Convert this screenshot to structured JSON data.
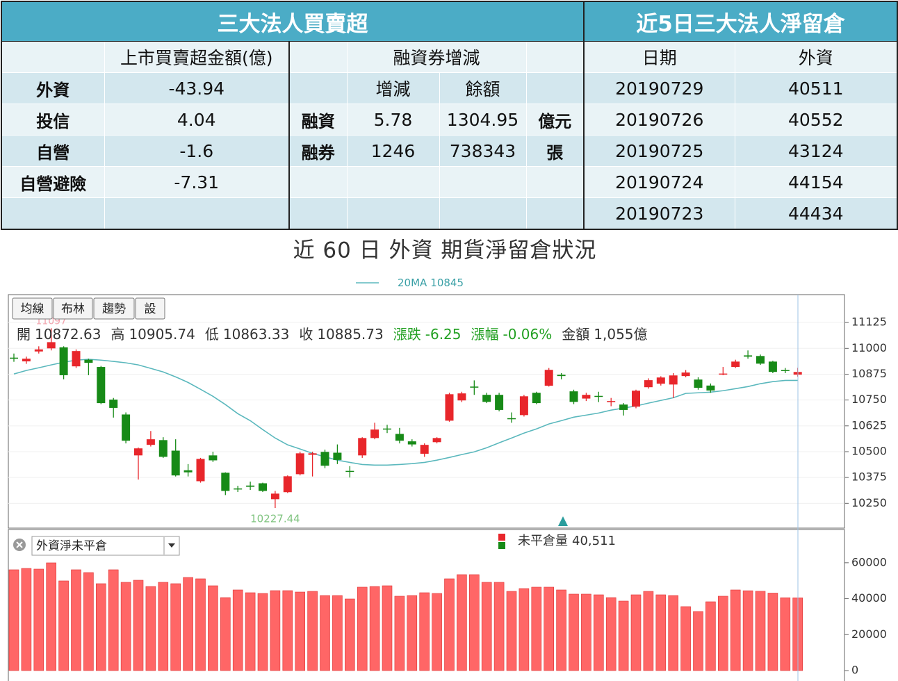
{
  "institutional": {
    "title": "三大法人買賣超",
    "amount_header": "上市買賣超金額(億)",
    "rows": [
      {
        "name": "外資",
        "amount": -43.94
      },
      {
        "name": "投信",
        "amount": 4.04
      },
      {
        "name": "自營",
        "amount": -1.6
      },
      {
        "name": "自營避險",
        "amount": -7.31
      }
    ]
  },
  "margin": {
    "header": "融資券增減",
    "col_change": "增減",
    "col_balance": "餘額",
    "rows": [
      {
        "name": "融資",
        "change": 5.78,
        "balance": 1304.95,
        "unit": "億元"
      },
      {
        "name": "融券",
        "change": 1246,
        "balance": 738343,
        "unit": "張"
      }
    ]
  },
  "net_position": {
    "title": "近5日三大法人淨留倉",
    "col_date": "日期",
    "col_foreign": "外資",
    "rows": [
      {
        "date": "20190729",
        "foreign": 40511
      },
      {
        "date": "20190726",
        "foreign": 40552
      },
      {
        "date": "20190725",
        "foreign": 43124
      },
      {
        "date": "20190724",
        "foreign": 44154
      },
      {
        "date": "20190723",
        "foreign": 44434
      }
    ]
  },
  "chart_title": "近 60 日 外資 期貨淨留倉狀況",
  "toolbar": [
    "均線",
    "布林",
    "趨勢",
    "設"
  ],
  "quote": [
    {
      "label": "開",
      "value": "10872.63"
    },
    {
      "label": "高",
      "value": "10905.74"
    },
    {
      "label": "低",
      "value": "10863.33"
    },
    {
      "label": "收",
      "value": "10885.73"
    },
    {
      "label": "漲跌",
      "value": "-6.25",
      "color": "#22a022"
    },
    {
      "label": "漲幅",
      "value": "-0.06%",
      "color": "#22a022"
    },
    {
      "label": "金額",
      "value": "1,055億"
    }
  ],
  "chart_data": [
    {
      "type": "candlestick",
      "up_color": "#e8262b",
      "down_color": "#178a17",
      "grid": true,
      "ylim": [
        10130,
        11260
      ],
      "yticks": [
        10250,
        10375,
        10500,
        10625,
        10750,
        10875,
        11000,
        11125
      ],
      "open": [
        10955,
        10937,
        10985,
        11000,
        11005,
        10913,
        10945,
        10910,
        10752,
        10680,
        10482,
        10533,
        10556,
        10505,
        10410,
        10357,
        10482,
        10398,
        10322,
        10336,
        10347,
        10270,
        10304,
        10391,
        10485,
        10499,
        10495,
        10407,
        10482,
        10566,
        10612,
        10586,
        10550,
        10490,
        10546,
        10650,
        10748,
        10815,
        10775,
        10775,
        10662,
        10677,
        10785,
        10819,
        10872,
        10792,
        10757,
        10770,
        10740,
        10728,
        10718,
        10812,
        10829,
        10825,
        10866,
        10849,
        10820,
        10873,
        10910,
        10966,
        10963,
        10936,
        10895,
        10872.63
      ],
      "high": [
        10975,
        10960,
        11010,
        11097,
        11010,
        10995,
        10950,
        10915,
        10760,
        10690,
        10520,
        10600,
        10570,
        10560,
        10440,
        10470,
        10500,
        10400,
        10335,
        10355,
        10350,
        10310,
        10385,
        10500,
        10500,
        10510,
        10535,
        10430,
        10570,
        10640,
        10630,
        10615,
        10560,
        10540,
        10570,
        10785,
        10790,
        10845,
        10785,
        10785,
        10690,
        10775,
        10790,
        10905,
        10880,
        10800,
        10785,
        10790,
        10760,
        10735,
        10800,
        10855,
        10865,
        10880,
        10895,
        10860,
        10830,
        10910,
        10945,
        10990,
        10970,
        10940,
        10905,
        10905.74
      ],
      "low": [
        10935,
        10925,
        10975,
        10990,
        10850,
        10905,
        10870,
        10730,
        10665,
        10540,
        10365,
        10525,
        10470,
        10380,
        10380,
        10350,
        10450,
        10290,
        10305,
        10315,
        10305,
        10227.44,
        10300,
        10385,
        10380,
        10420,
        10440,
        10375,
        10470,
        10560,
        10590,
        10540,
        10525,
        10475,
        10540,
        10645,
        10740,
        10775,
        10735,
        10695,
        10640,
        10670,
        10730,
        10815,
        10850,
        10730,
        10745,
        10740,
        10720,
        10675,
        10710,
        10805,
        10820,
        10760,
        10860,
        10800,
        10785,
        10870,
        10905,
        10950,
        10920,
        10880,
        10880,
        10863.33
      ],
      "close": [
        10950,
        10950,
        10995,
        11030,
        10870,
        10987,
        10930,
        10735,
        10712,
        10553,
        10516,
        10560,
        10475,
        10385,
        10400,
        10465,
        10458,
        10310,
        10318,
        10330,
        10310,
        10297,
        10381,
        10492,
        10492,
        10432,
        10460,
        10403,
        10566,
        10607,
        10608,
        10553,
        10535,
        10533,
        10566,
        10778,
        10782,
        10810,
        10741,
        10702,
        10658,
        10768,
        10735,
        10896,
        10866,
        10741,
        10775,
        10766,
        10745,
        10702,
        10795,
        10846,
        10859,
        10869,
        10883,
        10809,
        10796,
        10878,
        10936,
        10960,
        10926,
        10886,
        10890,
        10885.73
      ],
      "ma": {
        "name": "20MA",
        "color": "#5bb8bd",
        "values": [
          10876,
          10893,
          10906,
          10920,
          10933,
          10943,
          10947,
          10943,
          10937,
          10930,
          10920,
          10903,
          10886,
          10862,
          10835,
          10802,
          10768,
          10728,
          10684,
          10650,
          10607,
          10566,
          10533,
          10513,
          10492,
          10475,
          10459,
          10448,
          10438,
          10435,
          10435,
          10438,
          10442,
          10448,
          10459,
          10472,
          10486,
          10499,
          10519,
          10543,
          10566,
          10590,
          10610,
          10634,
          10650,
          10667,
          10677,
          10687,
          10701,
          10711,
          10721,
          10735,
          10748,
          10761,
          10782,
          10785,
          10788,
          10795,
          10805,
          10815,
          10829,
          10839,
          10845,
          10845
        ]
      }
    },
    {
      "type": "bar",
      "dropdown": "外資淨未平倉",
      "ylim": [
        0,
        78500
      ],
      "yticks": [
        0,
        20000,
        40000,
        60000
      ],
      "series": [
        {
          "name": "未平倉量",
          "color": "#ff6666",
          "last_value_label": "40,511",
          "values": [
            56090,
            56860,
            56470,
            59950,
            49900,
            56090,
            54540,
            48350,
            56090,
            49120,
            50280,
            46800,
            49120,
            48350,
            51830,
            51060,
            47190,
            40610,
            44870,
            43320,
            42930,
            44480,
            44480,
            43700,
            44090,
            41770,
            41770,
            39840,
            46420,
            46800,
            47190,
            41390,
            41770,
            43320,
            42930,
            51060,
            53380,
            53380,
            49120,
            49120,
            44090,
            45640,
            46420,
            46420,
            44870,
            42550,
            42550,
            42160,
            40610,
            38680,
            42160,
            44090,
            42160,
            41770,
            35590,
            32880,
            38290,
            41390,
            44870,
            44434,
            44154,
            43124,
            40552,
            40511
          ]
        }
      ]
    }
  ]
}
